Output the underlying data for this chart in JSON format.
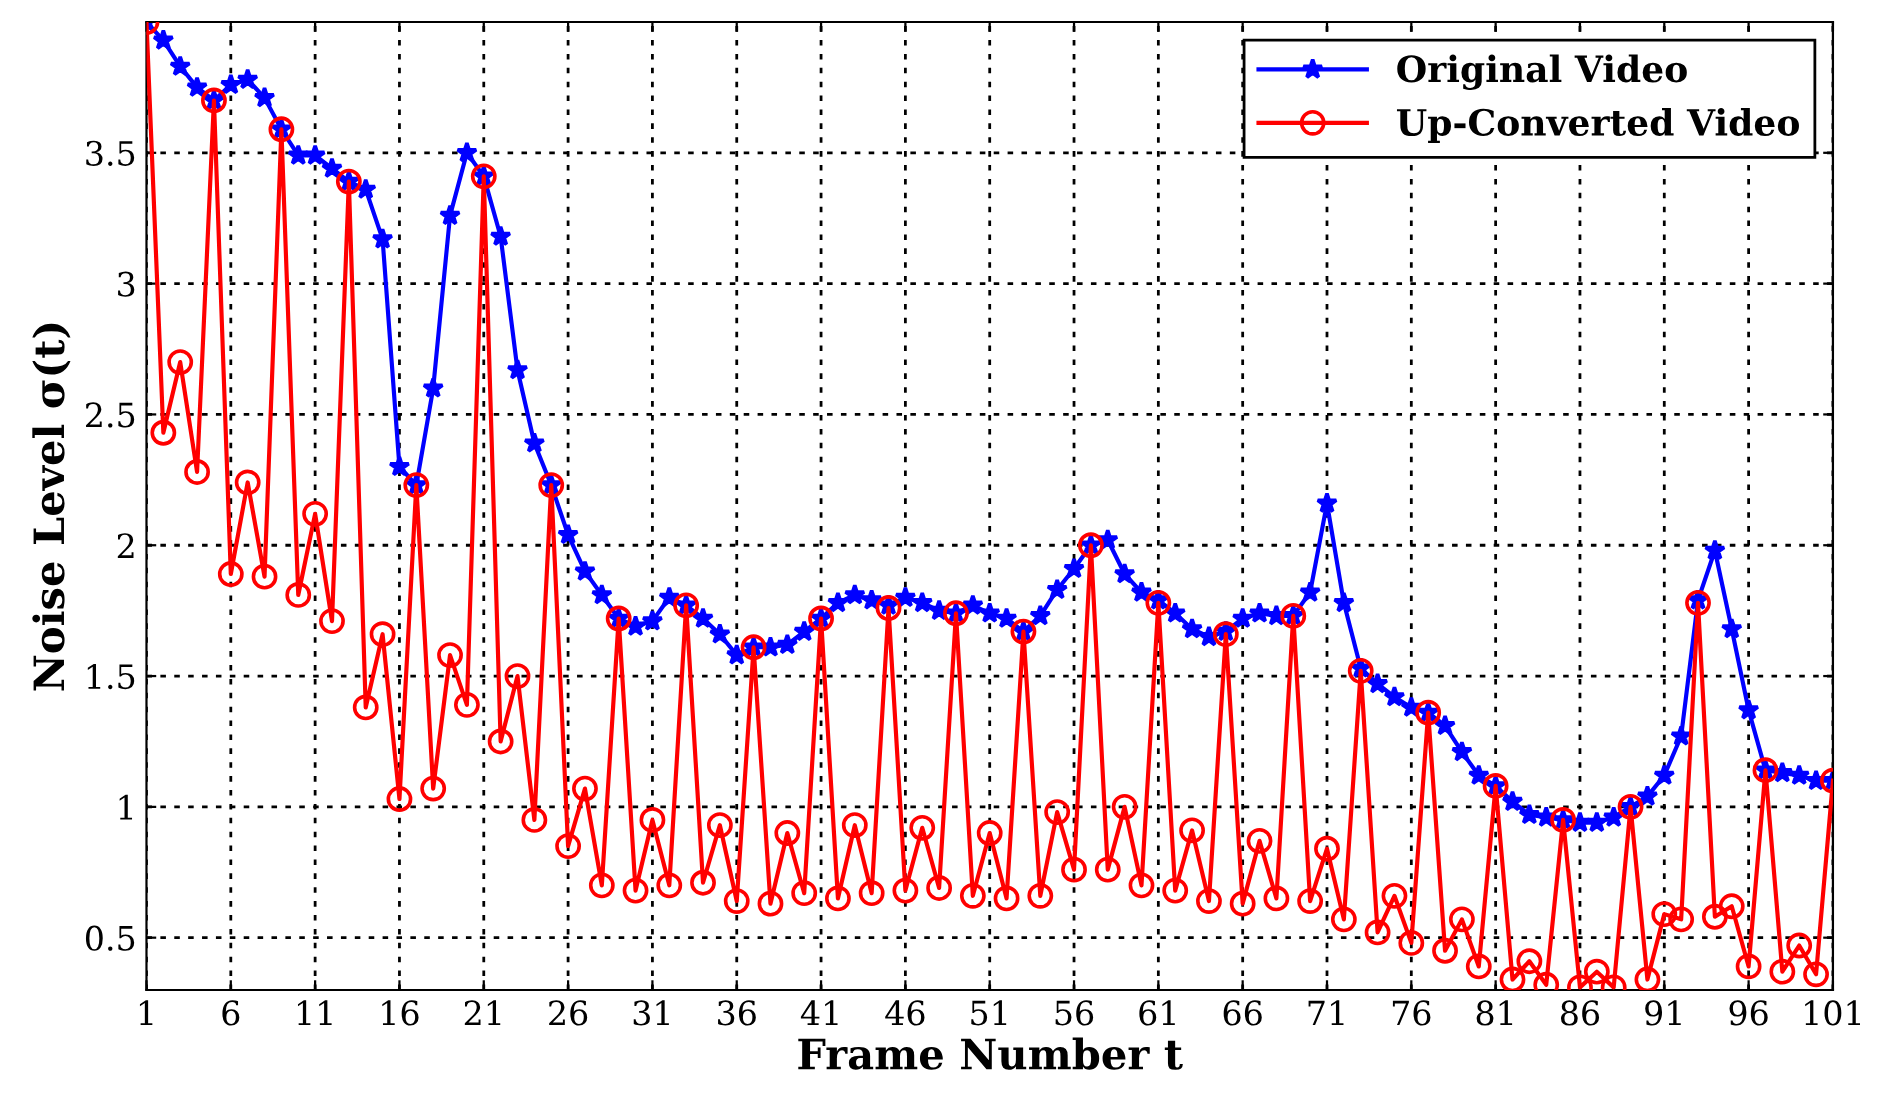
{
  "chart_data": {
    "type": "line",
    "xlabel": "Frame Number t",
    "ylabel": "Noise Level σ(t)",
    "x": [
      1,
      2,
      3,
      4,
      5,
      6,
      7,
      8,
      9,
      10,
      11,
      12,
      13,
      14,
      15,
      16,
      17,
      18,
      19,
      20,
      21,
      22,
      23,
      24,
      25,
      26,
      27,
      28,
      29,
      30,
      31,
      32,
      33,
      34,
      35,
      36,
      37,
      38,
      39,
      40,
      41,
      42,
      43,
      44,
      45,
      46,
      47,
      48,
      49,
      50,
      51,
      52,
      53,
      54,
      55,
      56,
      57,
      58,
      59,
      60,
      61,
      62,
      63,
      64,
      65,
      66,
      67,
      68,
      69,
      70,
      71,
      72,
      73,
      74,
      75,
      76,
      77,
      78,
      79,
      80,
      81,
      82,
      83,
      84,
      85,
      86,
      87,
      88,
      89,
      90,
      91,
      92,
      93,
      94,
      95,
      96,
      97,
      98,
      99,
      100,
      101
    ],
    "series": [
      {
        "name": "Original Video",
        "color": "#0000ff",
        "marker": "star",
        "values": [
          4.0,
          3.93,
          3.83,
          3.75,
          3.7,
          3.76,
          3.78,
          3.71,
          3.59,
          3.49,
          3.49,
          3.44,
          3.39,
          3.36,
          3.17,
          2.3,
          2.23,
          2.6,
          3.26,
          3.5,
          3.41,
          3.18,
          2.67,
          2.39,
          2.23,
          2.04,
          1.9,
          1.81,
          1.72,
          1.69,
          1.71,
          1.8,
          1.77,
          1.72,
          1.66,
          1.58,
          1.61,
          1.61,
          1.62,
          1.67,
          1.72,
          1.78,
          1.81,
          1.79,
          1.77,
          1.8,
          1.78,
          1.75,
          1.74,
          1.77,
          1.74,
          1.72,
          1.67,
          1.73,
          1.83,
          1.91,
          2.0,
          2.02,
          1.89,
          1.82,
          1.79,
          1.74,
          1.68,
          1.65,
          1.67,
          1.72,
          1.74,
          1.73,
          1.73,
          1.82,
          2.16,
          1.78,
          1.53,
          1.47,
          1.42,
          1.38,
          1.36,
          1.31,
          1.21,
          1.12,
          1.08,
          1.02,
          0.97,
          0.96,
          0.95,
          0.94,
          0.94,
          0.96,
          1.0,
          1.04,
          1.12,
          1.27,
          1.79,
          1.98,
          1.68,
          1.37,
          1.14,
          1.13,
          1.12,
          1.1,
          1.1
        ]
      },
      {
        "name": "Up-Converted Video",
        "color": "#ff0000",
        "marker": "circle",
        "values": [
          4.0,
          2.43,
          2.7,
          2.28,
          3.7,
          1.89,
          2.24,
          1.88,
          3.59,
          1.81,
          2.12,
          1.71,
          3.39,
          1.38,
          1.66,
          1.03,
          2.23,
          1.07,
          1.58,
          1.39,
          3.41,
          1.25,
          1.5,
          0.95,
          2.23,
          0.85,
          1.07,
          0.7,
          1.72,
          0.68,
          0.95,
          0.7,
          1.77,
          0.71,
          0.93,
          0.64,
          1.61,
          0.63,
          0.9,
          0.67,
          1.72,
          0.65,
          0.93,
          0.67,
          1.76,
          0.68,
          0.92,
          0.69,
          1.74,
          0.66,
          0.9,
          0.65,
          1.67,
          0.66,
          0.98,
          0.76,
          2.0,
          0.76,
          1.0,
          0.7,
          1.78,
          0.68,
          0.91,
          0.64,
          1.66,
          0.63,
          0.87,
          0.65,
          1.73,
          0.64,
          0.84,
          0.57,
          1.52,
          0.52,
          0.66,
          0.48,
          1.36,
          0.45,
          0.57,
          0.39,
          1.08,
          0.34,
          0.41,
          0.32,
          0.95,
          0.31,
          0.37,
          0.31,
          1.0,
          0.34,
          0.59,
          0.57,
          1.78,
          0.58,
          0.62,
          0.39,
          1.14,
          0.37,
          0.47,
          0.36,
          1.1
        ]
      }
    ],
    "xlim": [
      1,
      101
    ],
    "xticks": [
      1,
      6,
      11,
      16,
      21,
      26,
      31,
      36,
      41,
      46,
      51,
      56,
      61,
      66,
      71,
      76,
      81,
      86,
      91,
      96,
      101
    ],
    "ylim": [
      0.3,
      4.0
    ],
    "yticks": [
      0.5,
      1,
      1.5,
      2,
      2.5,
      3,
      3.5
    ],
    "grid": true,
    "legend": "top right",
    "line_style": "solid"
  }
}
